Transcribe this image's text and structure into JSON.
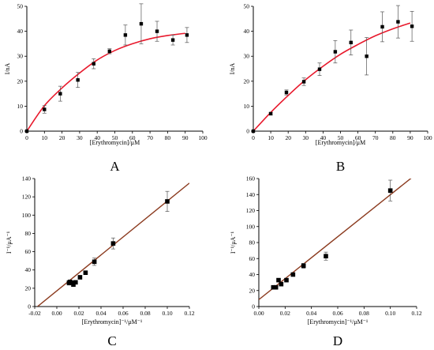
{
  "chart_data": [
    {
      "panel": "A",
      "type": "scatter",
      "xlabel": "[Erythromycin]/μM",
      "ylabel": "I/nA",
      "xlim": [
        0,
        100
      ],
      "ylim": [
        0,
        50
      ],
      "xticks": [
        0,
        10,
        20,
        30,
        40,
        50,
        60,
        70,
        80,
        90,
        100
      ],
      "yticks": [
        0,
        10,
        20,
        30,
        40,
        50
      ],
      "points": [
        {
          "x": 0,
          "y": 0,
          "err": 0
        },
        {
          "x": 10,
          "y": 8.7,
          "err": 1.5
        },
        {
          "x": 19,
          "y": 15,
          "err": 3
        },
        {
          "x": 29,
          "y": 20.5,
          "err": 3
        },
        {
          "x": 38,
          "y": 27,
          "err": 2
        },
        {
          "x": 47,
          "y": 32,
          "err": 1
        },
        {
          "x": 56,
          "y": 38.5,
          "err": 4
        },
        {
          "x": 65,
          "y": 43,
          "err": 8
        },
        {
          "x": 74,
          "y": 40,
          "err": 4
        },
        {
          "x": 83,
          "y": 36.5,
          "err": 2
        },
        {
          "x": 91,
          "y": 38.5,
          "err": 3
        }
      ],
      "fit_curve": {
        "x": [
          0,
          10,
          20,
          30,
          40,
          50,
          60,
          70,
          80,
          90
        ],
        "y": [
          0,
          10.2,
          17.3,
          23.3,
          28.5,
          32.3,
          35,
          37,
          38.3,
          39.2
        ]
      },
      "point_color": "#000000",
      "fit_color": "#e8192c"
    },
    {
      "panel": "B",
      "type": "scatter",
      "xlabel": "[Erythromycin]/μM",
      "ylabel": "I/nA",
      "xlim": [
        0,
        100
      ],
      "ylim": [
        0,
        50
      ],
      "xticks": [
        0,
        10,
        20,
        30,
        40,
        50,
        60,
        70,
        80,
        90,
        100
      ],
      "yticks": [
        0,
        10,
        20,
        30,
        40,
        50
      ],
      "points": [
        {
          "x": 0,
          "y": 0,
          "err": 0
        },
        {
          "x": 10,
          "y": 7,
          "err": 0.5
        },
        {
          "x": 19,
          "y": 15.5,
          "err": 1
        },
        {
          "x": 29,
          "y": 19.8,
          "err": 1.5
        },
        {
          "x": 38,
          "y": 24.8,
          "err": 2.5
        },
        {
          "x": 47,
          "y": 31.8,
          "err": 4.5
        },
        {
          "x": 56,
          "y": 35.5,
          "err": 5
        },
        {
          "x": 65,
          "y": 30,
          "err": 7.5
        },
        {
          "x": 74,
          "y": 41.8,
          "err": 6
        },
        {
          "x": 83,
          "y": 43.8,
          "err": 6.5
        },
        {
          "x": 91,
          "y": 42,
          "err": 6
        }
      ],
      "fit_curve": {
        "x": [
          0,
          10,
          20,
          30,
          40,
          50,
          60,
          70,
          80,
          90
        ],
        "y": [
          0,
          7.5,
          14.3,
          20.6,
          26,
          30.8,
          34.7,
          38.2,
          41,
          43.3
        ]
      },
      "point_color": "#000000",
      "fit_color": "#e8192c"
    },
    {
      "panel": "C",
      "type": "scatter",
      "xlabel": "[Erythromycin]⁻¹/μM⁻¹",
      "ylabel": "I⁻¹/μA⁻¹",
      "xlim": [
        -0.02,
        0.12
      ],
      "ylim": [
        0,
        140
      ],
      "xticks": [
        -0.02,
        0.0,
        0.02,
        0.04,
        0.06,
        0.08,
        0.1,
        0.12
      ],
      "xtick_labels": [
        "-0.02",
        "0.00",
        "0.02",
        "0.04",
        "0.06",
        "0.08",
        "0.10",
        "0.12"
      ],
      "yticks": [
        0,
        20,
        40,
        60,
        80,
        100,
        120,
        140
      ],
      "points": [
        {
          "x": 0.011,
          "y": 26,
          "err": 2.5
        },
        {
          "x": 0.012,
          "y": 27,
          "err": 2
        },
        {
          "x": 0.014,
          "y": 26,
          "err": 2
        },
        {
          "x": 0.015,
          "y": 24,
          "err": 2
        },
        {
          "x": 0.017,
          "y": 26.5,
          "err": 2
        },
        {
          "x": 0.021,
          "y": 32,
          "err": 2
        },
        {
          "x": 0.026,
          "y": 37,
          "err": 2
        },
        {
          "x": 0.034,
          "y": 49,
          "err": 4
        },
        {
          "x": 0.051,
          "y": 69,
          "err": 6
        },
        {
          "x": 0.1,
          "y": 115,
          "err": 11
        }
      ],
      "fit_line": {
        "x": [
          -0.0175,
          0.12
        ],
        "y": [
          0,
          135
        ]
      },
      "point_color": "#000000",
      "fit_color": "#8b3a1e"
    },
    {
      "panel": "D",
      "type": "scatter",
      "xlabel": "[Erythromycin]⁻¹/μM⁻¹",
      "ylabel": "I⁻¹/μA⁻¹",
      "xlim": [
        0,
        0.12
      ],
      "ylim": [
        0,
        160
      ],
      "xticks": [
        0.0,
        0.02,
        0.04,
        0.06,
        0.08,
        0.1,
        0.12
      ],
      "xtick_labels": [
        "0.00",
        "0.02",
        "0.04",
        "0.06",
        "0.08",
        "0.10",
        "0.12"
      ],
      "yticks": [
        0,
        20,
        40,
        60,
        80,
        100,
        120,
        140,
        160
      ],
      "points": [
        {
          "x": 0.011,
          "y": 24,
          "err": 1
        },
        {
          "x": 0.013,
          "y": 24,
          "err": 1.5
        },
        {
          "x": 0.015,
          "y": 33,
          "err": 1.5
        },
        {
          "x": 0.017,
          "y": 28,
          "err": 2
        },
        {
          "x": 0.021,
          "y": 33,
          "err": 2
        },
        {
          "x": 0.026,
          "y": 40,
          "err": 2
        },
        {
          "x": 0.034,
          "y": 51,
          "err": 3
        },
        {
          "x": 0.051,
          "y": 63,
          "err": 5
        },
        {
          "x": 0.1,
          "y": 145,
          "err": 13
        }
      ],
      "fit_line": {
        "x": [
          -0.002,
          0.12
        ],
        "y": [
          6,
          166
        ]
      },
      "point_color": "#000000",
      "fit_color": "#8b3a1e"
    }
  ]
}
